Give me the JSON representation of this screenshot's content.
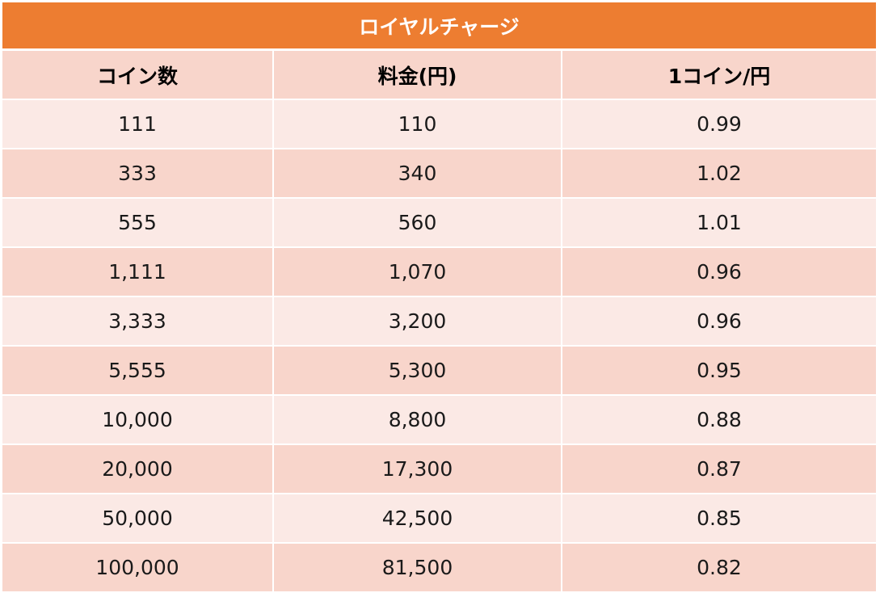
{
  "table": {
    "title": "ロイヤルチャージ",
    "headers": [
      "コイン数",
      "料金(円)",
      "1コイン/円"
    ],
    "rows": [
      [
        "111",
        "110",
        "0.99"
      ],
      [
        "333",
        "340",
        "1.02"
      ],
      [
        "555",
        "560",
        "1.01"
      ],
      [
        "1,111",
        "1,070",
        "0.96"
      ],
      [
        "3,333",
        "3,200",
        "0.96"
      ],
      [
        "5,555",
        "5,300",
        "0.95"
      ],
      [
        "10,000",
        "8,800",
        "0.88"
      ],
      [
        "20,000",
        "17,300",
        "0.87"
      ],
      [
        "50,000",
        "42,500",
        "0.85"
      ],
      [
        "100,000",
        "81,500",
        "0.82"
      ]
    ]
  },
  "colors": {
    "title_bg": "#ed7d31",
    "header_bg": "#f8d5cb",
    "row_light": "#fbe9e5",
    "row_dark": "#f8d5cb"
  }
}
